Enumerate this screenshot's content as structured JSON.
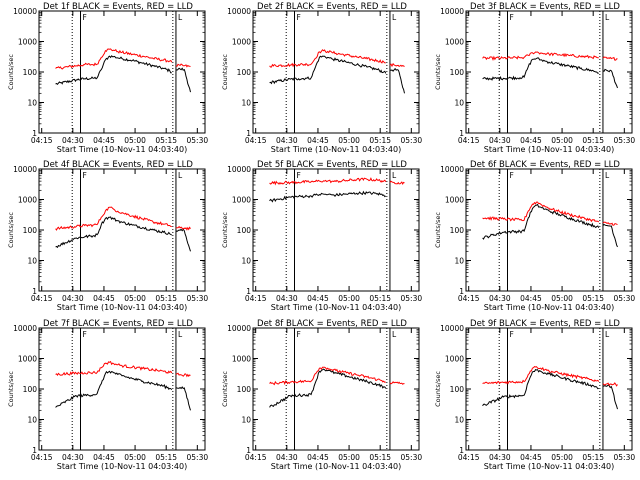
{
  "chart_data": [
    {
      "type": "line",
      "title": "Det 1f BLACK = Events, RED = LLD",
      "xlabel": "Start Time (10-Nov-11 04:03:40)",
      "ylabel": "Counts/sec",
      "yscale": "log",
      "ylim": [
        1,
        10000
      ],
      "x_ticks": [
        "04:15",
        "04:30",
        "04:45",
        "05:00",
        "05:15",
        "05:30"
      ],
      "y_ticks": [
        "1",
        "10",
        "100",
        "1000",
        "10000"
      ],
      "markers": {
        "flag": "F",
        "flag_end": "L"
      },
      "x_minutes": [
        18,
        28,
        32,
        36,
        38,
        40,
        42,
        44,
        46,
        48,
        50,
        55,
        60,
        65,
        70,
        73,
        74,
        74.5,
        75,
        75.5,
        76,
        78,
        80,
        83
      ],
      "series": [
        {
          "name": "Events",
          "color": "#000000",
          "values": [
            40,
            55,
            60,
            62,
            64,
            120,
            250,
            330,
            320,
            290,
            275,
            240,
            195,
            160,
            130,
            110,
            95,
            null,
            null,
            null,
            120,
            125,
            120,
            22
          ]
        },
        {
          "name": "LLD",
          "color": "#ff0000",
          "values": [
            130,
            160,
            175,
            175,
            180,
            300,
            500,
            560,
            520,
            470,
            440,
            380,
            330,
            280,
            245,
            230,
            210,
            null,
            null,
            null,
            160,
            165,
            160,
            150
          ]
        }
      ]
    },
    {
      "type": "line",
      "title": "Det 2f BLACK = Events, RED = LLD",
      "xlabel": "Start Time (10-Nov-11 04:03:40)",
      "ylabel": "Counts/sec",
      "yscale": "log",
      "ylim": [
        1,
        10000
      ],
      "x_ticks": [
        "04:15",
        "04:30",
        "04:45",
        "05:00",
        "05:15",
        "05:30"
      ],
      "y_ticks": [
        "1",
        "10",
        "100",
        "1000",
        "10000"
      ],
      "markers": {
        "flag": "F",
        "flag_end": "L"
      },
      "x_minutes": [
        18,
        28,
        32,
        36,
        38,
        40,
        42,
        44,
        46,
        48,
        50,
        55,
        60,
        65,
        70,
        73,
        74,
        74.5,
        75,
        75.5,
        76,
        78,
        80,
        83
      ],
      "series": [
        {
          "name": "Events",
          "color": "#000000",
          "values": [
            45,
            58,
            60,
            62,
            64,
            140,
            300,
            330,
            300,
            270,
            250,
            210,
            175,
            145,
            120,
            100,
            90,
            null,
            null,
            null,
            115,
            118,
            115,
            20
          ]
        },
        {
          "name": "LLD",
          "color": "#ff0000",
          "values": [
            160,
            170,
            175,
            178,
            180,
            280,
            460,
            500,
            470,
            440,
            410,
            360,
            310,
            270,
            235,
            215,
            200,
            null,
            null,
            null,
            165,
            170,
            165,
            150
          ]
        }
      ]
    },
    {
      "type": "line",
      "title": "Det 3f BLACK = Events, RED = LLD",
      "xlabel": "Start Time (10-Nov-11 04:03:40)",
      "ylabel": "Counts/sec",
      "yscale": "log",
      "ylim": [
        1,
        10000
      ],
      "x_ticks": [
        "04:15",
        "04:30",
        "04:45",
        "05:00",
        "05:15",
        "05:30"
      ],
      "y_ticks": [
        "1",
        "10",
        "100",
        "1000",
        "10000"
      ],
      "markers": {
        "flag": "F",
        "flag_end": "L"
      },
      "x_minutes": [
        18,
        28,
        32,
        36,
        38,
        40,
        42,
        44,
        46,
        48,
        50,
        55,
        60,
        65,
        70,
        73,
        74,
        74.5,
        75,
        75.5,
        76,
        78,
        80,
        83
      ],
      "series": [
        {
          "name": "Events",
          "color": "#000000",
          "values": [
            60,
            62,
            64,
            65,
            68,
            150,
            260,
            280,
            250,
            230,
            210,
            180,
            155,
            130,
            115,
            100,
            92,
            null,
            null,
            null,
            110,
            112,
            110,
            30
          ]
        },
        {
          "name": "LLD",
          "color": "#ff0000",
          "values": [
            280,
            285,
            290,
            295,
            300,
            350,
            430,
            450,
            420,
            400,
            390,
            370,
            345,
            325,
            310,
            300,
            295,
            null,
            null,
            null,
            285,
            280,
            275,
            270
          ]
        }
      ]
    },
    {
      "type": "line",
      "title": "Det 4f BLACK = Events, RED = LLD",
      "xlabel": "Start Time (10-Nov-11 04:03:40)",
      "ylabel": "Counts/sec",
      "yscale": "log",
      "ylim": [
        1,
        10000
      ],
      "x_ticks": [
        "04:15",
        "04:30",
        "04:45",
        "05:00",
        "05:15",
        "05:30"
      ],
      "y_ticks": [
        "1",
        "10",
        "100",
        "1000",
        "10000"
      ],
      "markers": {
        "flag": "F",
        "flag_end": "L"
      },
      "x_minutes": [
        18,
        28,
        32,
        36,
        38,
        40,
        42,
        44,
        46,
        48,
        50,
        55,
        60,
        65,
        70,
        73,
        74,
        74.5,
        75,
        75.5,
        76,
        78,
        80,
        83
      ],
      "series": [
        {
          "name": "Events",
          "color": "#000000",
          "values": [
            28,
            55,
            60,
            64,
            70,
            150,
            240,
            260,
            230,
            200,
            180,
            145,
            120,
            100,
            85,
            75,
            68,
            null,
            null,
            null,
            95,
            98,
            95,
            20
          ]
        },
        {
          "name": "LLD",
          "color": "#ff0000",
          "values": [
            110,
            130,
            140,
            145,
            150,
            260,
            420,
            560,
            480,
            410,
            370,
            290,
            230,
            185,
            155,
            140,
            130,
            null,
            null,
            null,
            115,
            118,
            115,
            110
          ]
        }
      ]
    },
    {
      "type": "line",
      "title": "Det 5f BLACK = Events, RED = LLD",
      "xlabel": "Start Time (10-Nov-11 04:03:40)",
      "ylabel": "Counts/sec",
      "yscale": "log",
      "ylim": [
        1,
        10000
      ],
      "x_ticks": [
        "04:15",
        "04:30",
        "04:45",
        "05:00",
        "05:15",
        "05:30"
      ],
      "y_ticks": [
        "1",
        "10",
        "100",
        "1000",
        "10000"
      ],
      "markers": {
        "flag": "F",
        "flag_end": "L"
      },
      "x_minutes": [
        18,
        28,
        32,
        36,
        38,
        40,
        42,
        44,
        46,
        48,
        50,
        55,
        60,
        65,
        70,
        73,
        74,
        74.5,
        75,
        75.5,
        76,
        78,
        80,
        83
      ],
      "series": [
        {
          "name": "Events",
          "color": "#000000",
          "values": [
            900,
            1200,
            1250,
            1280,
            1300,
            1400,
            1450,
            1500,
            1450,
            1420,
            1400,
            1500,
            1600,
            1650,
            1550,
            1400,
            1300,
            null,
            null,
            null,
            null,
            null,
            null,
            null
          ]
        },
        {
          "name": "LLD",
          "color": "#ff0000",
          "values": [
            3500,
            3600,
            3700,
            3800,
            3800,
            3900,
            4000,
            4100,
            4000,
            3950,
            3900,
            4200,
            4500,
            4600,
            4300,
            4000,
            3800,
            null,
            null,
            null,
            3600,
            3600,
            3550,
            3500
          ]
        }
      ]
    },
    {
      "type": "line",
      "title": "Det 6f BLACK = Events, RED = LLD",
      "xlabel": "Start Time (10-Nov-11 04:03:40)",
      "ylabel": "Counts/sec",
      "yscale": "log",
      "ylim": [
        1,
        10000
      ],
      "x_ticks": [
        "04:15",
        "04:30",
        "04:45",
        "05:00",
        "05:15",
        "05:30"
      ],
      "y_ticks": [
        "1",
        "10",
        "100",
        "1000",
        "10000"
      ],
      "markers": {
        "flag": "F",
        "flag_end": "L"
      },
      "x_minutes": [
        18,
        28,
        32,
        36,
        38,
        40,
        42,
        44,
        46,
        48,
        50,
        55,
        60,
        65,
        70,
        73,
        74,
        74.5,
        75,
        75.5,
        76,
        78,
        80,
        83
      ],
      "series": [
        {
          "name": "Events",
          "color": "#000000",
          "values": [
            55,
            85,
            88,
            90,
            92,
            250,
            500,
            650,
            560,
            480,
            420,
            320,
            245,
            190,
            150,
            130,
            118,
            null,
            null,
            null,
            140,
            140,
            135,
            28
          ]
        },
        {
          "name": "LLD",
          "color": "#ff0000",
          "values": [
            250,
            230,
            220,
            215,
            210,
            420,
            700,
            820,
            700,
            600,
            520,
            400,
            320,
            260,
            215,
            195,
            185,
            null,
            null,
            null,
            170,
            165,
            160,
            150
          ]
        }
      ]
    },
    {
      "type": "line",
      "title": "Det 7f BLACK = Events, RED = LLD",
      "xlabel": "Start Time (10-Nov-11 04:03:40)",
      "ylabel": "Counts/sec",
      "yscale": "log",
      "ylim": [
        1,
        10000
      ],
      "x_ticks": [
        "04:15",
        "04:30",
        "04:45",
        "05:00",
        "05:15",
        "05:30"
      ],
      "y_ticks": [
        "1",
        "10",
        "100",
        "1000",
        "10000"
      ],
      "markers": {
        "flag": "F",
        "flag_end": "L"
      },
      "x_minutes": [
        18,
        28,
        32,
        36,
        38,
        40,
        42,
        44,
        46,
        48,
        50,
        55,
        60,
        65,
        70,
        73,
        74,
        74.5,
        75,
        75.5,
        76,
        78,
        80,
        83
      ],
      "series": [
        {
          "name": "Events",
          "color": "#000000",
          "values": [
            25,
            60,
            62,
            65,
            70,
            150,
            320,
            380,
            340,
            300,
            270,
            220,
            180,
            150,
            125,
            105,
            95,
            null,
            null,
            null,
            110,
            112,
            108,
            20
          ]
        },
        {
          "name": "LLD",
          "color": "#ff0000",
          "values": [
            300,
            330,
            340,
            345,
            350,
            500,
            700,
            750,
            680,
            620,
            580,
            520,
            470,
            420,
            380,
            350,
            335,
            null,
            null,
            null,
            300,
            295,
            290,
            280
          ]
        }
      ]
    },
    {
      "type": "line",
      "title": "Det 8f BLACK = Events, RED = LLD",
      "xlabel": "Start Time (10-Nov-11 04:03:40)",
      "ylabel": "Counts/sec",
      "yscale": "log",
      "ylim": [
        1,
        10000
      ],
      "x_ticks": [
        "04:15",
        "04:30",
        "04:45",
        "05:00",
        "05:15",
        "05:30"
      ],
      "y_ticks": [
        "1",
        "10",
        "100",
        "1000",
        "10000"
      ],
      "markers": {
        "flag": "F",
        "flag_end": "L"
      },
      "x_minutes": [
        18,
        28,
        32,
        36,
        38,
        40,
        42,
        44,
        46,
        48,
        50,
        55,
        60,
        65,
        70,
        73,
        74,
        74.5,
        75,
        75.5,
        76,
        78,
        80,
        83
      ],
      "series": [
        {
          "name": "Events",
          "color": "#000000",
          "values": [
            25,
            60,
            62,
            64,
            66,
            160,
            380,
            450,
            400,
            360,
            330,
            270,
            215,
            175,
            140,
            118,
            105,
            null,
            null,
            null,
            null,
            null,
            null,
            null
          ]
        },
        {
          "name": "LLD",
          "color": "#ff0000",
          "values": [
            150,
            170,
            175,
            178,
            180,
            320,
            480,
            520,
            480,
            430,
            400,
            340,
            290,
            245,
            205,
            180,
            170,
            null,
            null,
            null,
            160,
            160,
            155,
            150
          ]
        }
      ]
    },
    {
      "type": "line",
      "title": "Det 9f BLACK = Events, RED = LLD",
      "xlabel": "Start Time (10-Nov-11 04:03:40)",
      "ylabel": "Counts/sec",
      "yscale": "log",
      "ylim": [
        1,
        10000
      ],
      "x_ticks": [
        "04:15",
        "04:30",
        "04:45",
        "05:00",
        "05:15",
        "05:30"
      ],
      "y_ticks": [
        "1",
        "10",
        "100",
        "1000",
        "10000"
      ],
      "markers": {
        "flag": "F",
        "flag_end": "L"
      },
      "x_minutes": [
        18,
        28,
        32,
        36,
        38,
        40,
        42,
        44,
        46,
        48,
        50,
        55,
        60,
        65,
        70,
        73,
        74,
        74.5,
        75,
        75.5,
        76,
        78,
        80,
        83
      ],
      "series": [
        {
          "name": "Events",
          "color": "#000000",
          "values": [
            28,
            55,
            58,
            60,
            62,
            170,
            360,
            420,
            380,
            340,
            310,
            250,
            200,
            165,
            135,
            115,
            105,
            null,
            null,
            null,
            125,
            125,
            120,
            22
          ]
        },
        {
          "name": "LLD",
          "color": "#ff0000",
          "values": [
            150,
            165,
            170,
            172,
            175,
            300,
            480,
            540,
            480,
            430,
            390,
            330,
            280,
            240,
            205,
            185,
            175,
            null,
            null,
            null,
            150,
            148,
            145,
            140
          ]
        }
      ]
    }
  ]
}
